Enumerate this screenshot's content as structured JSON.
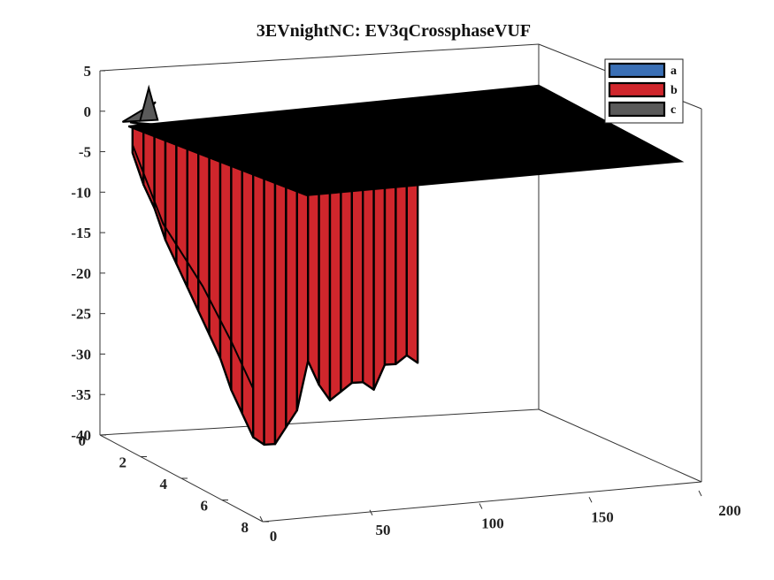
{
  "chart_data": {
    "type": "surface3d",
    "title": "3EVnightNC: EV3qCrossphaseVUF",
    "axes": {
      "x": {
        "ticks": [
          0,
          50,
          100,
          150,
          200
        ],
        "range": [
          0,
          200
        ]
      },
      "y": {
        "ticks": [
          0,
          2,
          4,
          6,
          8
        ],
        "range": [
          0,
          8
        ]
      },
      "z": {
        "ticks": [
          5,
          0,
          -5,
          -10,
          -15,
          -20,
          -25,
          -30,
          -35,
          -40
        ],
        "range": [
          -40,
          5
        ]
      }
    },
    "legend": {
      "placement": "top-right",
      "entries": [
        {
          "name": "a",
          "color": "#3a6fb5"
        },
        {
          "name": "b",
          "color": "#d0262c"
        },
        {
          "name": "c",
          "color": "#5a5a5a"
        }
      ]
    },
    "series": [
      {
        "name": "b",
        "color": "#d0262c",
        "profile_x": [
          0,
          5,
          10,
          15,
          20,
          25,
          30,
          35,
          40,
          45,
          50,
          55,
          60,
          65,
          70,
          75,
          80,
          85,
          90,
          95,
          100,
          105,
          110,
          115,
          120,
          125,
          130
        ],
        "profile_z": [
          -3,
          -7,
          -10,
          -14,
          -17,
          -20,
          -23,
          -26,
          -29,
          -33,
          -36,
          -39,
          -40,
          -40,
          -38,
          -36,
          -30,
          -33,
          -35,
          -34,
          -33,
          -33,
          -34,
          -31,
          -31,
          -30,
          -31
        ]
      },
      {
        "name": "a",
        "color": "#3a6fb5",
        "level_z": -1
      },
      {
        "name": "c",
        "color": "#5a5a5a",
        "level_z": 0
      }
    ],
    "plane_color": "#000000",
    "plane_z": 0,
    "grid": false
  }
}
